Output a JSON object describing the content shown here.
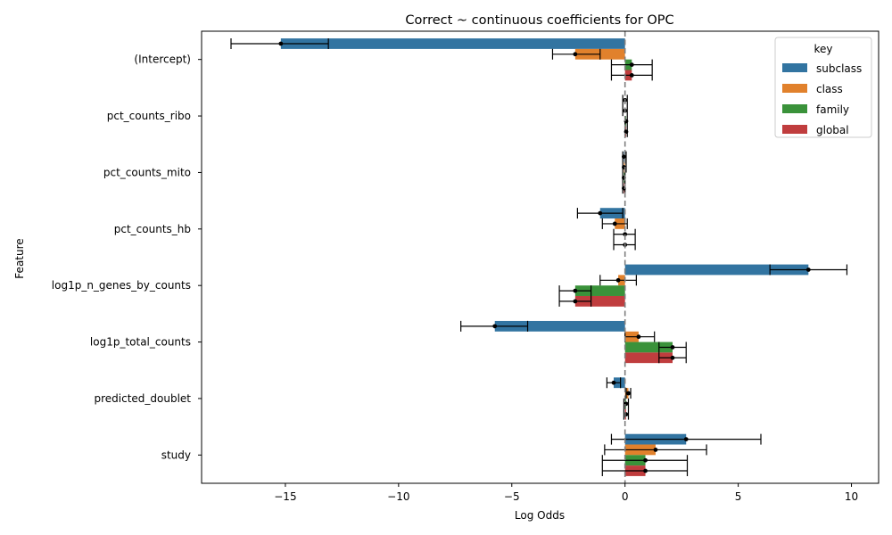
{
  "chart_data": {
    "type": "bar",
    "orientation": "horizontal",
    "title": "Correct ~ continuous coefficients for OPC",
    "xlabel": "Log Odds",
    "ylabel": "Feature",
    "xlim": [
      -18.7,
      11.2
    ],
    "xticks": [
      -15,
      -10,
      -5,
      0,
      5,
      10
    ],
    "xtick_labels": [
      "−15",
      "−10",
      "−5",
      "0",
      "5",
      "10"
    ],
    "grid": false,
    "reference_line": {
      "x": 0,
      "style": "dashed"
    },
    "categories": [
      "(Intercept)",
      "pct_counts_ribo",
      "pct_counts_mito",
      "pct_counts_hb",
      "log1p_n_genes_by_counts",
      "log1p_total_counts",
      "predicted_doublet",
      "study"
    ],
    "legend": {
      "title": "key",
      "placement": "upper-right"
    },
    "series": [
      {
        "name": "subclass",
        "color": "#3274a1",
        "values": [
          -15.2,
          0.0,
          -0.05,
          -1.1,
          8.1,
          -5.75,
          -0.5,
          2.7
        ],
        "error": [
          [
            -17.4,
            -13.1
          ],
          [
            -0.1,
            0.1
          ],
          [
            -0.1,
            0.05
          ],
          [
            -2.1,
            -0.1
          ],
          [
            6.4,
            9.8
          ],
          [
            -7.25,
            -4.3
          ],
          [
            -0.8,
            -0.2
          ],
          [
            -0.6,
            6.0
          ]
        ]
      },
      {
        "name": "class",
        "color": "#e1812c",
        "values": [
          -2.2,
          0.0,
          -0.05,
          -0.45,
          -0.3,
          0.6,
          0.15,
          1.35
        ],
        "error": [
          [
            -3.2,
            -1.1
          ],
          [
            -0.1,
            0.1
          ],
          [
            -0.1,
            0.05
          ],
          [
            -1.0,
            0.1
          ],
          [
            -1.1,
            0.5
          ],
          [
            0.0,
            1.3
          ],
          [
            0.05,
            0.25
          ],
          [
            -0.9,
            3.6
          ]
        ]
      },
      {
        "name": "family",
        "color": "#3a923a",
        "values": [
          0.3,
          0.05,
          -0.05,
          0.0,
          -2.2,
          2.1,
          0.05,
          0.9
        ],
        "error": [
          [
            -0.6,
            1.2
          ],
          [
            0.0,
            0.1
          ],
          [
            -0.1,
            0.0
          ],
          [
            -0.5,
            0.45
          ],
          [
            -2.9,
            -1.5
          ],
          [
            1.5,
            2.7
          ],
          [
            -0.05,
            0.15
          ],
          [
            -1.0,
            2.75
          ]
        ]
      },
      {
        "name": "global",
        "color": "#c03d3e",
        "values": [
          0.3,
          0.05,
          -0.05,
          0.0,
          -2.2,
          2.1,
          0.05,
          0.9
        ],
        "error": [
          [
            -0.6,
            1.2
          ],
          [
            0.0,
            0.1
          ],
          [
            -0.1,
            0.0
          ],
          [
            -0.5,
            0.45
          ],
          [
            -2.9,
            -1.5
          ],
          [
            1.5,
            2.7
          ],
          [
            -0.05,
            0.15
          ],
          [
            -1.0,
            2.75
          ]
        ]
      }
    ]
  }
}
